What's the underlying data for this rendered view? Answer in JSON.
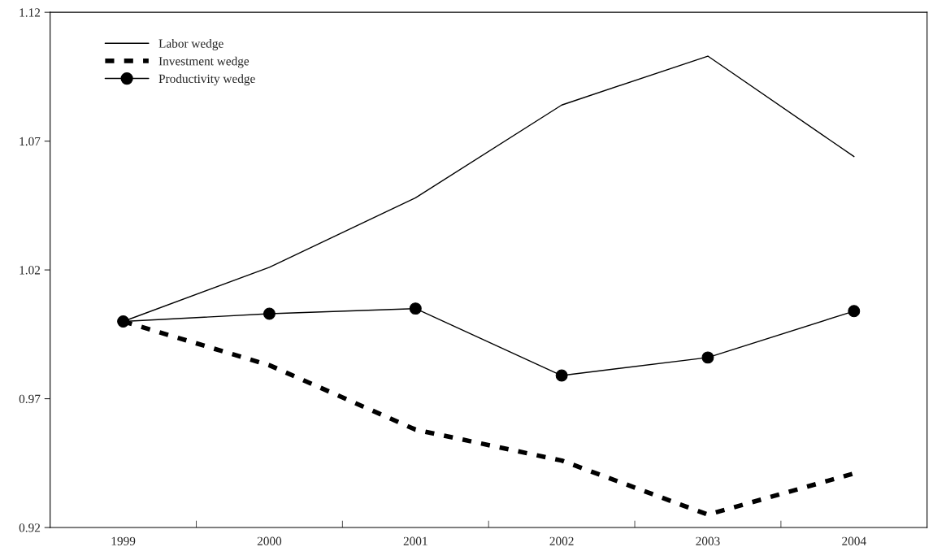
{
  "chart_data": {
    "type": "line",
    "categories": [
      "1999",
      "2000",
      "2001",
      "2002",
      "2003",
      "2004"
    ],
    "series": [
      {
        "name": "Labor wedge",
        "color": "#000000",
        "line_style": "solid",
        "marker": "none",
        "values": [
          1.0,
          1.021,
          1.048,
          1.084,
          1.103,
          1.064
        ]
      },
      {
        "name": "Investment wedge",
        "color": "#000000",
        "line_style": "dashed",
        "marker": "none",
        "values": [
          1.0,
          0.983,
          0.958,
          0.946,
          0.925,
          0.941
        ]
      },
      {
        "name": "Productivity wedge",
        "color": "#000000",
        "line_style": "solid",
        "marker": "circle",
        "values": [
          1.0,
          1.003,
          1.005,
          0.979,
          0.986,
          1.004
        ]
      }
    ],
    "ylim": [
      0.92,
      1.12
    ],
    "yticks": [
      0.92,
      0.97,
      1.02,
      1.07,
      1.12
    ],
    "grid": false,
    "legend": "top left"
  }
}
